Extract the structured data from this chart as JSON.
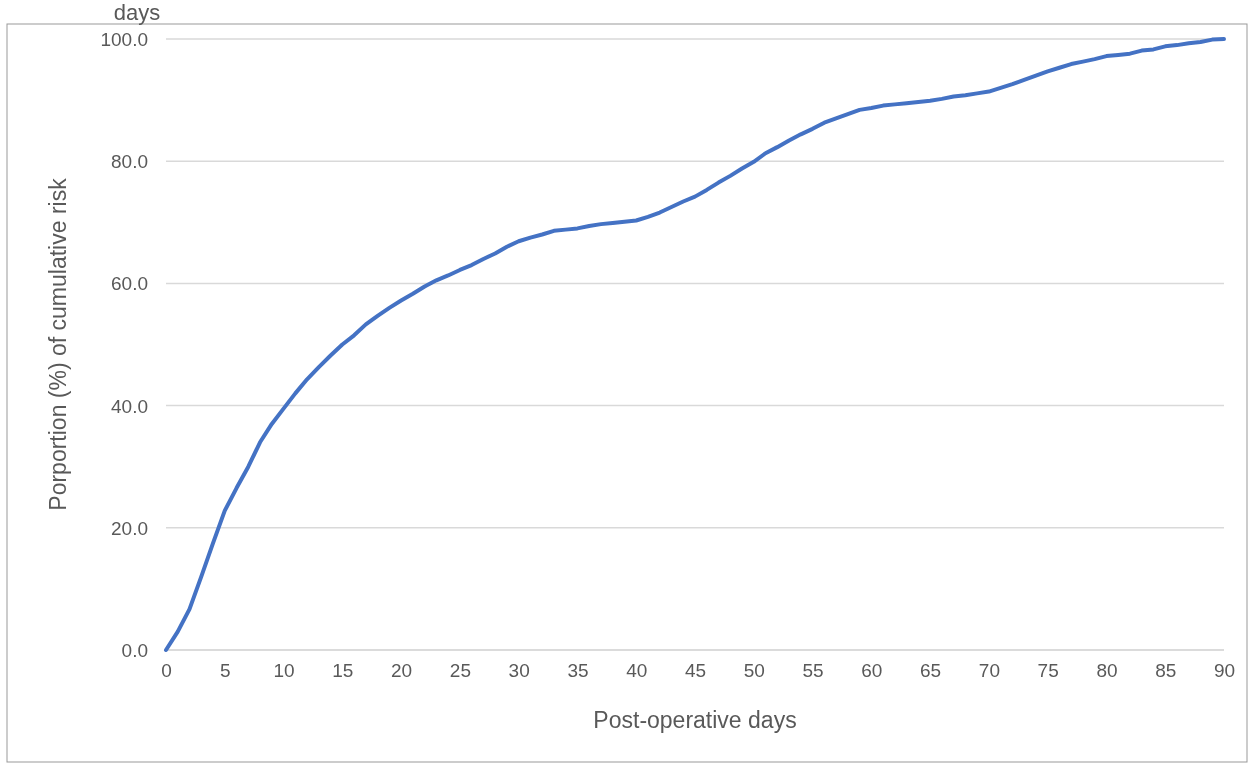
{
  "chart_data": {
    "type": "line",
    "title": "days",
    "xlabel": "Post-operative days",
    "ylabel": "Porportion (%) of cumulative risk",
    "x": [
      0,
      1,
      2,
      3,
      4,
      5,
      6,
      7,
      8,
      9,
      10,
      11,
      12,
      13,
      14,
      15,
      16,
      17,
      18,
      19,
      20,
      21,
      22,
      23,
      24,
      25,
      26,
      27,
      28,
      29,
      30,
      31,
      32,
      33,
      34,
      35,
      36,
      37,
      38,
      39,
      40,
      41,
      42,
      43,
      44,
      45,
      46,
      47,
      48,
      49,
      50,
      51,
      52,
      53,
      54,
      55,
      56,
      57,
      58,
      59,
      60,
      61,
      62,
      63,
      64,
      65,
      66,
      67,
      68,
      69,
      70,
      71,
      72,
      73,
      74,
      75,
      76,
      77,
      78,
      79,
      80,
      81,
      82,
      83,
      84,
      85,
      86,
      87,
      88,
      89,
      90
    ],
    "series": [
      {
        "color": "#4472c4",
        "values": [
          0,
          3,
          6.7,
          12,
          17.5,
          22.8,
          26.5,
          30,
          34,
          37,
          39.5,
          42,
          44.3,
          46.3,
          48.2,
          50,
          51.5,
          53.3,
          54.7,
          56,
          57.2,
          58.3,
          59.5,
          60.5,
          61.3,
          62.2,
          63,
          64,
          64.9,
          66,
          66.9,
          67.5,
          68,
          68.6,
          68.8,
          69,
          69.4,
          69.7,
          69.9,
          70.1,
          70.3,
          70.9,
          71.6,
          72.5,
          73.4,
          74.2,
          75.3,
          76.5,
          77.6,
          78.8,
          79.9,
          81.3,
          82.3,
          83.4,
          84.4,
          85.3,
          86.3,
          87,
          87.7,
          88.4,
          88.7,
          89.1,
          89.3,
          89.5,
          89.7,
          89.9,
          90.2,
          90.6,
          90.8,
          91.1,
          91.4,
          92,
          92.6,
          93.3,
          94,
          94.7,
          95.3,
          95.9,
          96.3,
          96.7,
          97.2,
          97.4,
          97.6,
          98.1,
          98.3,
          98.8,
          99,
          99.3,
          99.5,
          99.9,
          100
        ]
      }
    ],
    "xlim": [
      0,
      90
    ],
    "xticks": [
      0,
      5,
      10,
      15,
      20,
      25,
      30,
      35,
      40,
      45,
      50,
      55,
      60,
      65,
      70,
      75,
      80,
      85,
      90
    ],
    "ylim": [
      0,
      100
    ],
    "yticks": [
      {
        "value": 0,
        "label": "0.0"
      },
      {
        "value": 20,
        "label": "20.0"
      },
      {
        "value": 40,
        "label": "40.0"
      },
      {
        "value": 60,
        "label": "60.0"
      },
      {
        "value": 80,
        "label": "80.0"
      },
      {
        "value": 100,
        "label": "100.0"
      }
    ],
    "grid": "y",
    "marker": "none",
    "line_style": "solid"
  }
}
